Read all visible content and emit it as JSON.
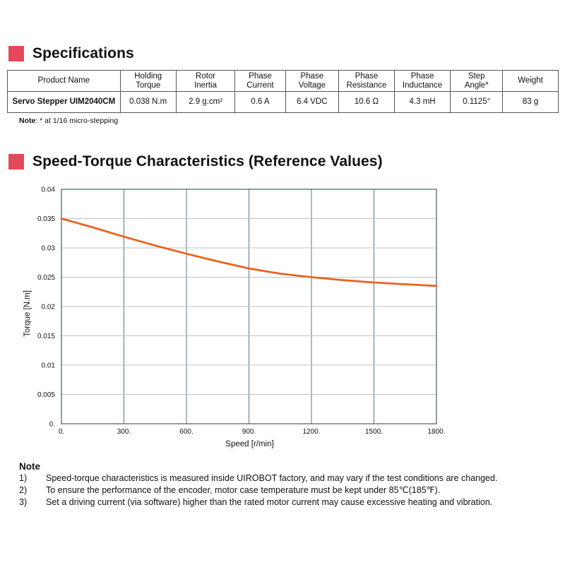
{
  "specifications": {
    "title": "Specifications",
    "headers": [
      [
        "Product Name"
      ],
      [
        "Holding",
        "Torque"
      ],
      [
        "Rotor",
        "Inertia"
      ],
      [
        "Phase",
        "Current"
      ],
      [
        "Phase",
        "Voltage"
      ],
      [
        "Phase",
        "Resistance"
      ],
      [
        "Phase",
        "Inductance"
      ],
      [
        "Step",
        "Angle*"
      ],
      [
        "Weight"
      ]
    ],
    "row": [
      "Servo Stepper UIM2040CM",
      "0.038 N.m",
      "2.9 g.cm²",
      "0.6 A",
      "6.4 VDC",
      "10.6 Ω",
      "4.3 mH",
      "0.1125°",
      "83 g"
    ],
    "note_label": "Note",
    "note_text": ": * at 1/16 micro-stepping"
  },
  "speed_torque": {
    "title": "Speed-Torque Characteristics (Reference Values)"
  },
  "chart_data": {
    "type": "line",
    "title": "Speed-Torque Characteristics (Reference Values)",
    "xlabel": "Speed [r/min]",
    "ylabel": "Torque [N.m]",
    "xlim": [
      0,
      1800
    ],
    "ylim": [
      0,
      0.04
    ],
    "xticks": [
      0,
      300,
      600,
      900,
      1200,
      1500,
      1800
    ],
    "xtick_labels": [
      "0.",
      "300.",
      "600.",
      "900.",
      "1200.",
      "1500.",
      "1800."
    ],
    "yticks": [
      0,
      0.005,
      0.01,
      0.015,
      0.02,
      0.025,
      0.03,
      0.035,
      0.04
    ],
    "ytick_labels": [
      "0.",
      "0.005",
      "0.01",
      "0.015",
      "0.02",
      "0.025",
      "0.03",
      "0.035",
      "0.04"
    ],
    "grid": true,
    "series": [
      {
        "name": "Torque",
        "color": "#e8641e",
        "x": [
          0,
          150,
          300,
          450,
          600,
          750,
          900,
          1050,
          1200,
          1350,
          1500,
          1650,
          1800
        ],
        "y": [
          0.035,
          0.0335,
          0.0319,
          0.0304,
          0.029,
          0.0277,
          0.0265,
          0.0256,
          0.025,
          0.0245,
          0.0241,
          0.0238,
          0.0235
        ]
      }
    ]
  },
  "notes": {
    "title": "Note",
    "items": [
      {
        "num": "1)",
        "text": "Speed-torque characteristics is measured inside UIROBOT factory, and may vary if the test conditions are changed."
      },
      {
        "num": "2)",
        "text": "To ensure the performance of the encoder, motor case temperature must be kept under 85℃(185℉)."
      },
      {
        "num": "3)",
        "text": "Set a driving current (via software) higher than the rated motor current may cause excessive heating and vibration."
      }
    ]
  }
}
